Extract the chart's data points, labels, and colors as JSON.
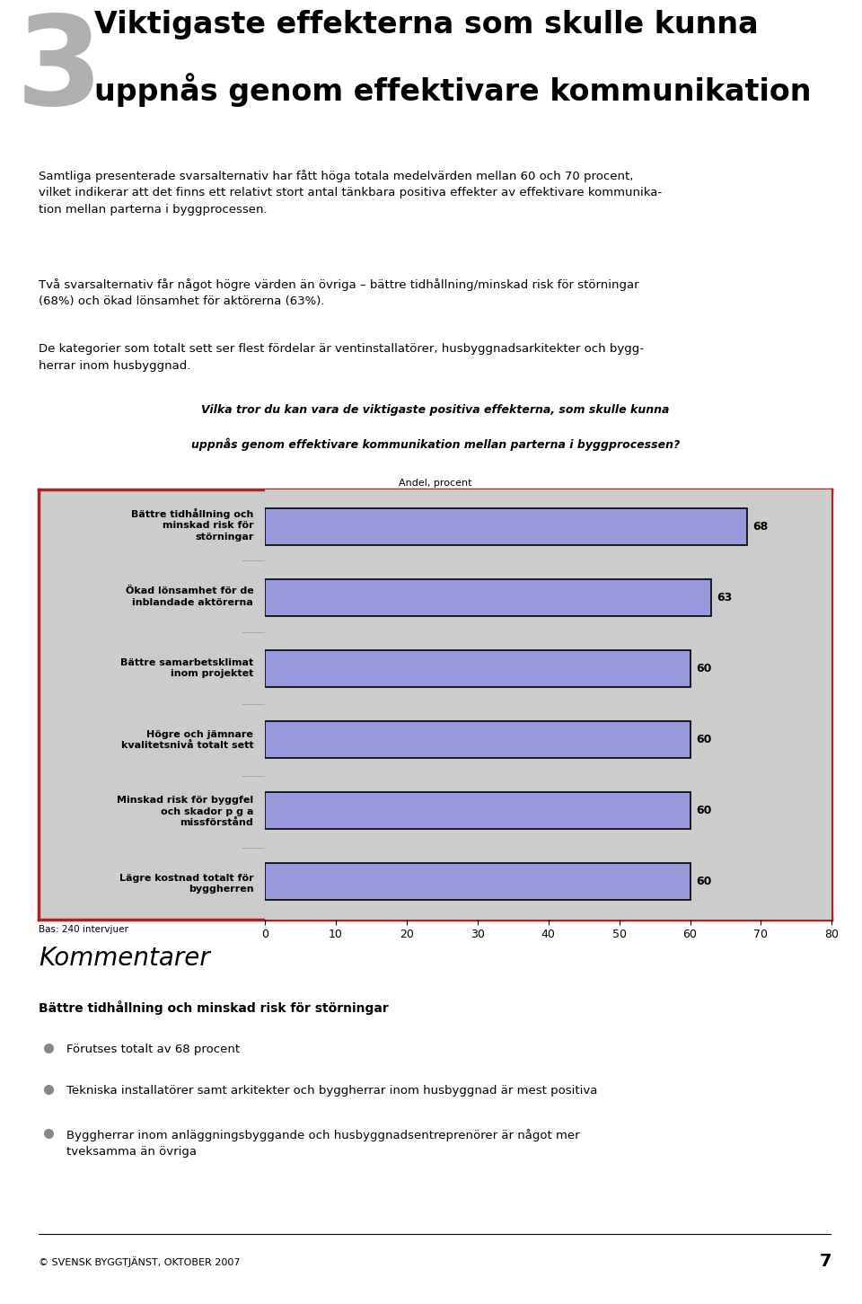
{
  "page_title_line1": "Viktigaste effekterna som skulle kunna",
  "page_title_line2": "uppnås genom effektivare kommunikation",
  "page_number": "3",
  "intro_text": "Samtliga presenterade svarsalternativ har fått höga totala medelvärden mellan 60 och 70 procent,\nvilket indikerar att det finns ett relativt stort antal tänkbara positiva effekter av effektivare kommunika-\ntion mellan parterna i byggprocessen.",
  "para2_text": "Två svarsalternativ får något högre värden än övriga – bättre tidhållning/minskad risk för störningar\n(68%) och ökad lönsamhet för aktörerna (63%).",
  "para3_text": "De kategorier som totalt sett ser flest fördelar är ventinstallatörer, husbyggnadsarkitekter och bygg-\nherrar inom husbyggnad.",
  "chart_title_line1": "Vilka tror du kan vara de viktigaste positiva effekterna, som skulle kunna",
  "chart_title_line2": "uppnås genom effektivare kommunikation mellan parterna i byggprocessen?",
  "chart_subtitle": "Andel, procent",
  "categories": [
    "Bättre tidhållning och\nminskad risk för\nstörningar",
    "Ökad lönsamhet för de\ninblandade aktörerna",
    "Bättre samarbetsklimat\ninom projektet",
    "Högre och jämnare\nkvalitetsnivå totalt sett",
    "Minskad risk för byggfel\noch skador p g a\nmissförstånd",
    "Lägre kostnad totalt för\nbyggherren"
  ],
  "values": [
    68,
    63,
    60,
    60,
    60,
    60
  ],
  "bar_color": "#9999dd",
  "bar_edge_color": "#000000",
  "bg_color": "#cccccc",
  "chart_border_color": "#aa2222",
  "xlim": [
    0,
    80
  ],
  "xticks": [
    0,
    10,
    20,
    30,
    40,
    50,
    60,
    70,
    80
  ],
  "bas_text": "Bas: 240 intervjuer",
  "kommentarer_title": "Kommentarer",
  "kommentarer_subtitle": "Bättre tidhållning och minskad risk för störningar",
  "bullet_points": [
    "Förutses totalt av 68 procent",
    "Tekniska installatörer samt arkitekter och byggherrar inom husbyggnad är mest positiva",
    "Byggherrar inom anläggningsbyggande och husbyggnadsentreprenörer är något mer\ntveksamma än övriga"
  ],
  "footer_text": "© SVENSK BYGGTJÄNST, OKTOBER 2007",
  "footer_page": "7",
  "title_fontsize": 24,
  "number_fontsize": 100,
  "body_fontsize": 9.5,
  "chart_title_fontsize": 9,
  "bar_label_fontsize": 9,
  "yticklabel_fontsize": 8,
  "xtick_fontsize": 9,
  "bas_fontsize": 7.5,
  "komm_title_fontsize": 20,
  "komm_sub_fontsize": 10,
  "bullet_fontsize": 9.5,
  "footer_fontsize": 8,
  "footer_page_fontsize": 14
}
